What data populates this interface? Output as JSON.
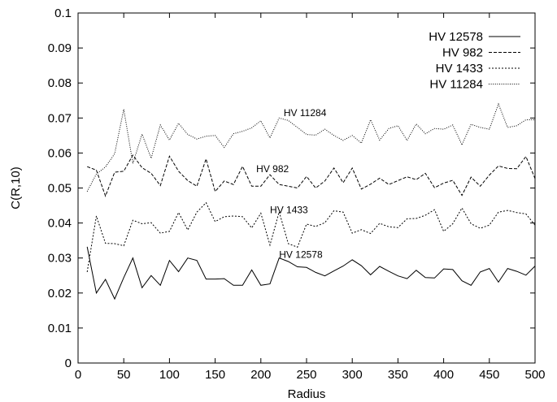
{
  "chart_data": {
    "type": "line",
    "xlabel": "Radius",
    "ylabel": "C(R,10)",
    "xlim": [
      0,
      500
    ],
    "ylim": [
      0,
      0.1
    ],
    "xticks": [
      "0",
      "50",
      "100",
      "150",
      "200",
      "250",
      "300",
      "350",
      "400",
      "450",
      "500"
    ],
    "yticks": [
      "0",
      "0.01",
      "0.02",
      "0.03",
      "0.04",
      "0.05",
      "0.06",
      "0.07",
      "0.08",
      "0.09",
      "0.1"
    ],
    "grid": false,
    "legend_position": "top-right",
    "x": [
      10,
      20,
      30,
      40,
      50,
      60,
      70,
      80,
      90,
      100,
      110,
      120,
      130,
      140,
      150,
      160,
      170,
      180,
      190,
      200,
      210,
      220,
      230,
      240,
      250,
      260,
      270,
      280,
      290,
      300,
      310,
      320,
      330,
      340,
      350,
      360,
      370,
      380,
      390,
      400,
      410,
      420,
      430,
      440,
      450,
      460,
      470,
      480,
      490,
      500
    ],
    "series": [
      {
        "name": "HV 12578",
        "dash": "solid",
        "values": [
          0.0332,
          0.02,
          0.0239,
          0.0183,
          0.0244,
          0.03,
          0.0215,
          0.025,
          0.0222,
          0.0293,
          0.0261,
          0.03,
          0.0293,
          0.024,
          0.024,
          0.0241,
          0.0222,
          0.0222,
          0.0266,
          0.0222,
          0.0226,
          0.03,
          0.029,
          0.0275,
          0.0273,
          0.0259,
          0.0249,
          0.0263,
          0.0277,
          0.0295,
          0.0278,
          0.0252,
          0.0276,
          0.0262,
          0.0249,
          0.0241,
          0.0265,
          0.0244,
          0.0243,
          0.0269,
          0.0267,
          0.0235,
          0.0222,
          0.026,
          0.027,
          0.0231,
          0.027,
          0.0262,
          0.0251,
          0.0277
        ]
      },
      {
        "name": "HV 982",
        "dash": "dashed",
        "values": [
          0.0561,
          0.0551,
          0.0477,
          0.0545,
          0.0548,
          0.0594,
          0.0558,
          0.0542,
          0.0507,
          0.0591,
          0.0548,
          0.0521,
          0.0505,
          0.0583,
          0.049,
          0.052,
          0.051,
          0.0562,
          0.0505,
          0.0505,
          0.0538,
          0.051,
          0.0505,
          0.05,
          0.0533,
          0.05,
          0.052,
          0.0557,
          0.0515,
          0.0557,
          0.0497,
          0.0511,
          0.0528,
          0.051,
          0.0521,
          0.0532,
          0.0524,
          0.0542,
          0.0501,
          0.0514,
          0.0522,
          0.0479,
          0.0531,
          0.0505,
          0.0537,
          0.0563,
          0.0556,
          0.0555,
          0.059,
          0.0527
        ]
      },
      {
        "name": "HV 1433",
        "dash": "dotted-dense",
        "values": [
          0.026,
          0.042,
          0.0342,
          0.0341,
          0.0335,
          0.0408,
          0.0398,
          0.0401,
          0.0371,
          0.0376,
          0.043,
          0.038,
          0.0431,
          0.0458,
          0.0404,
          0.0418,
          0.042,
          0.0418,
          0.0386,
          0.0428,
          0.0337,
          0.0432,
          0.0341,
          0.0331,
          0.0397,
          0.039,
          0.0401,
          0.0435,
          0.0431,
          0.0371,
          0.0381,
          0.037,
          0.0399,
          0.0389,
          0.0387,
          0.0412,
          0.0413,
          0.0422,
          0.0438,
          0.0376,
          0.0398,
          0.0443,
          0.0398,
          0.0385,
          0.0394,
          0.0431,
          0.0436,
          0.043,
          0.0426,
          0.0394
        ]
      },
      {
        "name": "HV 11284",
        "dash": "dotted-fine",
        "values": [
          0.049,
          0.054,
          0.056,
          0.0598,
          0.0725,
          0.057,
          0.0654,
          0.0585,
          0.068,
          0.0637,
          0.0685,
          0.0653,
          0.064,
          0.0648,
          0.065,
          0.0616,
          0.0655,
          0.0662,
          0.0672,
          0.0692,
          0.0643,
          0.07,
          0.0693,
          0.0673,
          0.0653,
          0.0651,
          0.0668,
          0.065,
          0.0636,
          0.065,
          0.0628,
          0.0695,
          0.0637,
          0.067,
          0.0678,
          0.0636,
          0.0683,
          0.0655,
          0.067,
          0.0668,
          0.068,
          0.0623,
          0.0682,
          0.0673,
          0.0668,
          0.074,
          0.0673,
          0.0678,
          0.0695,
          0.0695
        ]
      }
    ],
    "annotations": [
      {
        "text": "HV 11284",
        "x": 225,
        "y": 0.0705
      },
      {
        "text": "HV 982",
        "x": 195,
        "y": 0.0545
      },
      {
        "text": "HV 1433",
        "x": 210,
        "y": 0.0428
      },
      {
        "text": "HV 12578",
        "x": 220,
        "y": 0.03
      }
    ]
  }
}
